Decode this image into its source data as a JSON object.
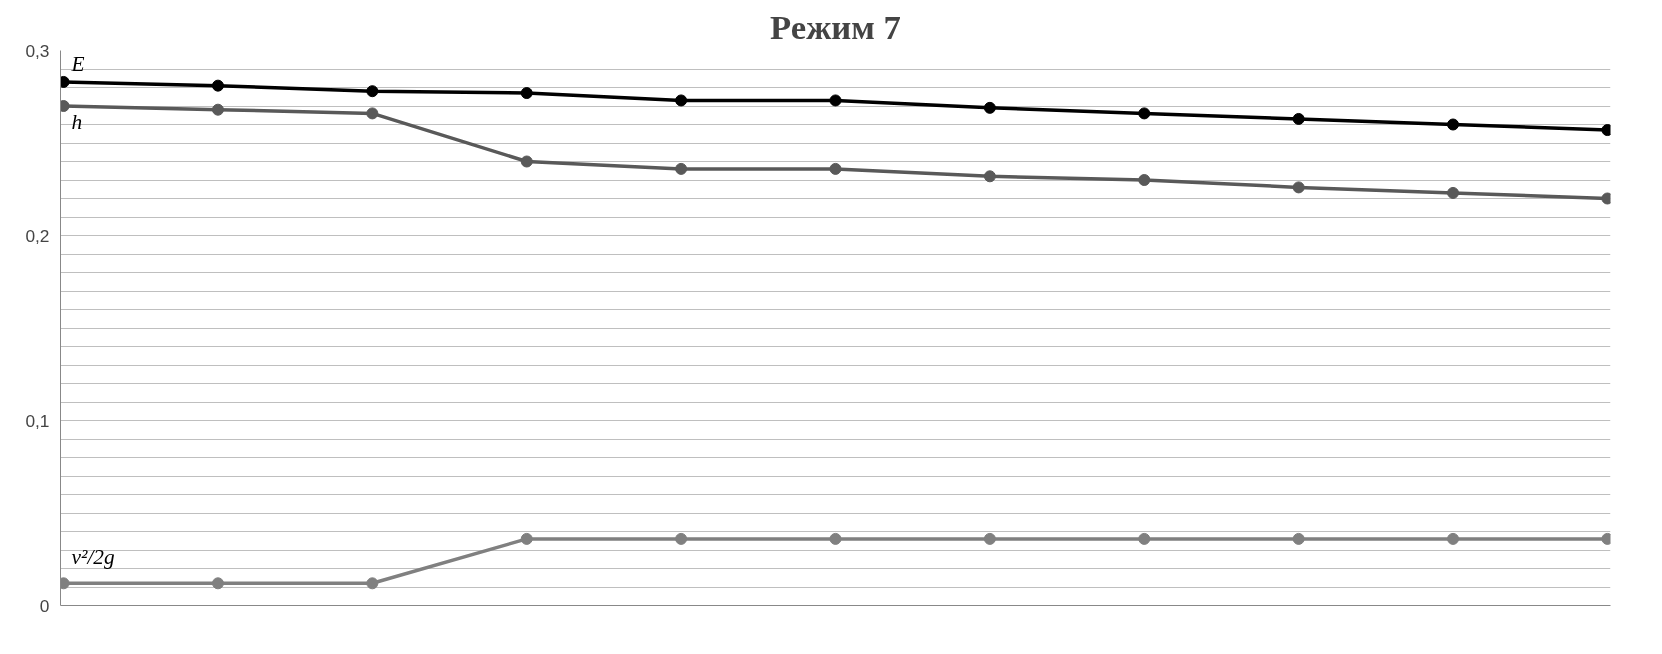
{
  "chart_data": {
    "type": "line",
    "title": "Режим 7",
    "categories": [
      null,
      null,
      null,
      null,
      null,
      null,
      null,
      null,
      null,
      null,
      null
    ],
    "series": [
      {
        "name": "E",
        "color": "#000000",
        "values": [
          0.283,
          0.281,
          0.278,
          0.277,
          0.273,
          0.273,
          0.269,
          0.266,
          0.263,
          0.26,
          0.257
        ]
      },
      {
        "name": "h",
        "color": "#595959",
        "values": [
          0.27,
          0.268,
          0.266,
          0.24,
          0.236,
          0.236,
          0.232,
          0.23,
          0.226,
          0.223,
          0.22
        ]
      },
      {
        "name": "v²/2g",
        "color": "#808080",
        "values": [
          0.012,
          0.012,
          0.012,
          0.036,
          0.036,
          0.036,
          0.036,
          0.036,
          0.036,
          0.036,
          0.036
        ]
      }
    ],
    "ylim": [
      0,
      0.3
    ],
    "yticks": [
      0,
      {
        "value": 0.01,
        "label": null
      },
      {
        "value": 0.02,
        "label": null
      },
      {
        "value": 0.03,
        "label": null
      },
      {
        "value": 0.04,
        "label": null
      },
      {
        "value": 0.05,
        "label": null
      },
      {
        "value": 0.06,
        "label": null
      },
      {
        "value": 0.07,
        "label": null
      },
      {
        "value": 0.08,
        "label": null
      },
      {
        "value": 0.09,
        "label": null
      },
      {
        "value": 0.1,
        "label": "0,1"
      },
      {
        "value": 0.11,
        "label": null
      },
      {
        "value": 0.12,
        "label": null
      },
      {
        "value": 0.13,
        "label": null
      },
      {
        "value": 0.14,
        "label": null
      },
      {
        "value": 0.15,
        "label": null
      },
      {
        "value": 0.16,
        "label": null
      },
      {
        "value": 0.17,
        "label": null
      },
      {
        "value": 0.18,
        "label": null
      },
      {
        "value": 0.19,
        "label": null
      },
      {
        "value": 0.2,
        "label": "0,2"
      },
      {
        "value": 0.21,
        "label": null
      },
      {
        "value": 0.22,
        "label": null
      },
      {
        "value": 0.23,
        "label": null
      },
      {
        "value": 0.24,
        "label": null
      },
      {
        "value": 0.25,
        "label": null
      },
      {
        "value": 0.26,
        "label": null
      },
      {
        "value": 0.27,
        "label": null
      },
      {
        "value": 0.28,
        "label": null
      },
      {
        "value": 0.29,
        "label": null
      },
      {
        "value": 0.3,
        "label": "0,3"
      }
    ],
    "grid": "y",
    "marker": "circle",
    "line_style": "solid",
    "legend": false,
    "tick_labels": "y"
  }
}
